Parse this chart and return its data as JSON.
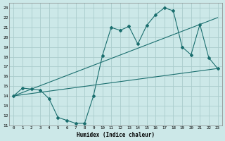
{
  "xlabel": "Humidex (Indice chaleur)",
  "bg_color": "#cce8e8",
  "grid_color": "#aacccc",
  "line_color": "#1a6e6e",
  "xlim": [
    -0.5,
    23.5
  ],
  "ylim": [
    11,
    23.5
  ],
  "yticks": [
    11,
    12,
    13,
    14,
    15,
    16,
    17,
    18,
    19,
    20,
    21,
    22,
    23
  ],
  "xticks": [
    0,
    1,
    2,
    3,
    4,
    5,
    6,
    7,
    8,
    9,
    10,
    11,
    12,
    13,
    14,
    15,
    16,
    17,
    18,
    19,
    20,
    21,
    22,
    23
  ],
  "line1_x": [
    0,
    1,
    2,
    3,
    4,
    5,
    6,
    7,
    8,
    9,
    10,
    11,
    12,
    13,
    14,
    15,
    16,
    17,
    18,
    19,
    20,
    21,
    22,
    23
  ],
  "line1_y": [
    14.0,
    14.8,
    14.7,
    14.6,
    13.7,
    11.8,
    11.5,
    11.2,
    11.2,
    14.0,
    18.1,
    21.0,
    20.7,
    21.1,
    19.3,
    21.2,
    22.3,
    23.0,
    22.7,
    19.0,
    18.2,
    21.3,
    17.9,
    16.8
  ],
  "line2_x": [
    0,
    23
  ],
  "line2_y": [
    14.0,
    16.8
  ],
  "line3_x": [
    0,
    23
  ],
  "line3_y": [
    14.0,
    22.0
  ],
  "marker": "D",
  "markersize": 2.0,
  "linewidth": 0.8
}
